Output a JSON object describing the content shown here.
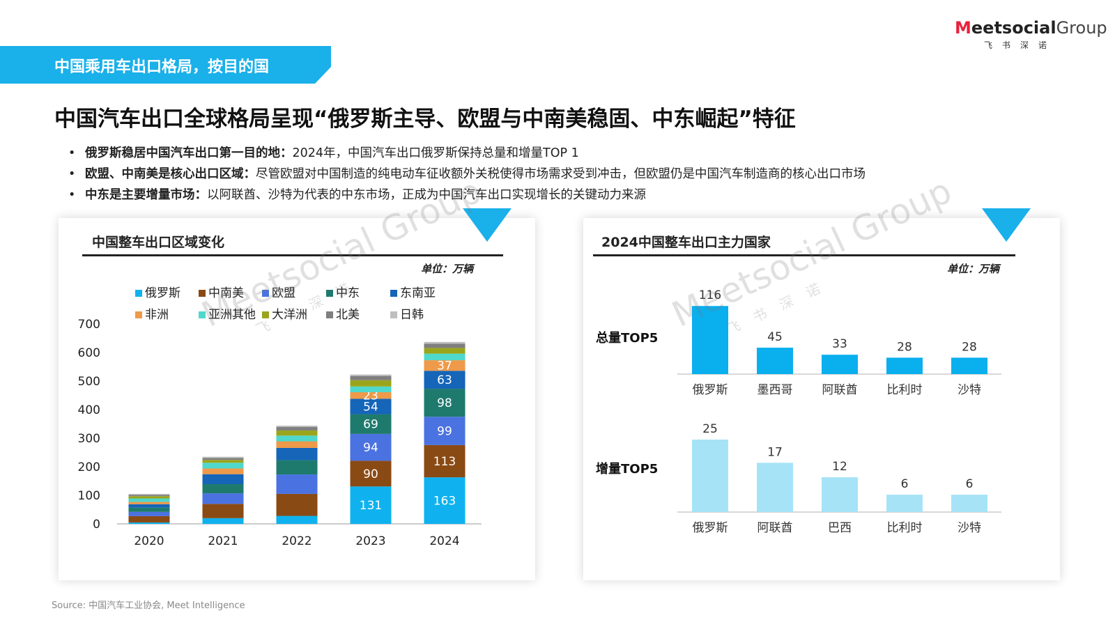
{
  "header": {
    "banner_title": "中国乘用车出口格局，按目的国",
    "logo_text_m": "M",
    "logo_text_bold": "eetsocial",
    "logo_text_group": "Group",
    "logo_sub": "飞书深诺"
  },
  "headline": "中国汽车出口全球格局呈现“俄罗斯主导、欧盟与中南美稳固、中东崛起”特征",
  "bullets": [
    {
      "lead": "俄罗斯稳居中国汽车出口第一目的地：",
      "text": "2024年，中国汽车出口俄罗斯保持总量和增量TOP 1"
    },
    {
      "lead": "欧盟、中南美是核心出口区域：",
      "text": "尽管欧盟对中国制造的纯电动车征收额外关税使得市场需求受到冲击，但欧盟仍是中国汽车制造商的核心出口市场"
    },
    {
      "lead": "中东是主要增量市场：",
      "text": "以阿联酋、沙特为代表的中东市场，正成为中国汽车出口实现增长的关键动力来源"
    }
  ],
  "colors": {
    "brand_blue": "#1ab0ea",
    "russia": "#0fb2ee",
    "latam": "#8a4a14",
    "eu": "#4a72e0",
    "mideast": "#1f7a6e",
    "sea": "#1565b8",
    "africa": "#ee9a4a",
    "asia_other": "#4fd8cc",
    "oceania": "#9aa51c",
    "namerica": "#7f7f7f",
    "japan_korea": "#bfbfbf",
    "top_total": "#0aafee",
    "top_incr": "#a6e3f7"
  },
  "left_card": {
    "title": "中国整车出口区域变化",
    "unit": "单位：万辆"
  },
  "right_card": {
    "title": "2024中国整车出口主力国家",
    "unit": "单位：万辆"
  },
  "chart_data": [
    {
      "type": "bar",
      "stacked": true,
      "title": "中国整车出口区域变化",
      "unit": "单位：万辆",
      "categories": [
        "2020",
        "2021",
        "2022",
        "2023",
        "2024"
      ],
      "ylim": [
        0,
        700
      ],
      "yticks": [
        0,
        100,
        200,
        300,
        400,
        500,
        600,
        700
      ],
      "legend_placement": "top",
      "series": [
        {
          "name": "俄罗斯",
          "color": "#0fb2ee",
          "values": [
            5,
            20,
            28,
            131,
            163
          ],
          "labels": [
            null,
            null,
            null,
            "131",
            "163"
          ]
        },
        {
          "name": "中南美",
          "color": "#8a4a14",
          "values": [
            22,
            50,
            77,
            90,
            113
          ],
          "labels": [
            null,
            null,
            null,
            "90",
            "113"
          ]
        },
        {
          "name": "欧盟",
          "color": "#4a72e0",
          "values": [
            15,
            37,
            68,
            94,
            99
          ],
          "labels": [
            null,
            null,
            null,
            "94",
            "99"
          ]
        },
        {
          "name": "中东",
          "color": "#1f7a6e",
          "values": [
            15,
            32,
            50,
            69,
            98
          ],
          "labels": [
            null,
            null,
            null,
            "69",
            "98"
          ]
        },
        {
          "name": "东南亚",
          "color": "#1565b8",
          "values": [
            12,
            35,
            43,
            54,
            63
          ],
          "labels": [
            null,
            null,
            null,
            "54",
            "63"
          ]
        },
        {
          "name": "非洲",
          "color": "#ee9a4a",
          "values": [
            8,
            20,
            23,
            23,
            37
          ],
          "labels": [
            null,
            null,
            null,
            "23",
            "37"
          ]
        },
        {
          "name": "亚洲其他",
          "color": "#4fd8cc",
          "values": [
            12,
            20,
            20,
            20,
            23
          ],
          "labels": [
            null,
            null,
            null,
            null,
            null
          ]
        },
        {
          "name": "大洋洲",
          "color": "#9aa51c",
          "values": [
            8,
            10,
            18,
            22,
            20
          ],
          "labels": [
            null,
            null,
            null,
            null,
            null
          ]
        },
        {
          "name": "北美",
          "color": "#7f7f7f",
          "values": [
            5,
            7,
            12,
            15,
            15
          ],
          "labels": [
            null,
            null,
            null,
            null,
            null
          ]
        },
        {
          "name": "日韩",
          "color": "#bfbfbf",
          "values": [
            3,
            4,
            5,
            5,
            6
          ],
          "labels": [
            null,
            null,
            null,
            null,
            null
          ]
        }
      ],
      "grid": false
    },
    {
      "type": "bar",
      "title": "2024中国整车出口主力国家",
      "unit": "单位：万辆",
      "group_label": "总量TOP5",
      "categories": [
        "俄罗斯",
        "墨西哥",
        "阿联酋",
        "比利时",
        "沙特"
      ],
      "values": [
        116,
        45,
        33,
        28,
        28
      ],
      "color": "#0aafee",
      "grid": false
    },
    {
      "type": "bar",
      "title": "2024中国整车出口主力国家",
      "unit": "单位：万辆",
      "group_label": "增量TOP5",
      "categories": [
        "俄罗斯",
        "阿联酋",
        "巴西",
        "比利时",
        "沙特"
      ],
      "values": [
        25,
        17,
        12,
        6,
        6
      ],
      "color": "#a6e3f7",
      "grid": false
    }
  ],
  "watermark": {
    "text_main": "Meetsocial Group",
    "text_sub": "飞书深诺"
  },
  "source": "Source: 中国汽车工业协会, Meet Intelligence"
}
